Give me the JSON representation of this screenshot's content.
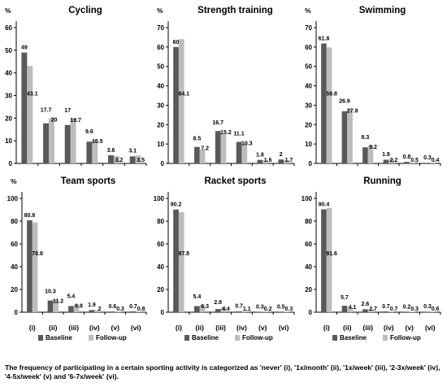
{
  "colors": {
    "baseline": "#595959",
    "followup": "#bdbdbd",
    "axis": "#000000"
  },
  "legend": {
    "baseline": "Baseline",
    "followup": "Follow-up"
  },
  "caption": "The frequency of participating in a certain sporting activity is categorized as 'never' (i), '1x/month' (ii), '1x/week' (iii), '2-3x/week' (iv), '4-5x/week' (v) and '6-7x/week' (vi).",
  "chart_data": [
    {
      "type": "bar",
      "title": "Cycling",
      "ylabel": "%",
      "ylim": [
        0,
        60
      ],
      "yticks": [
        0,
        10,
        20,
        30,
        40,
        50,
        60
      ],
      "categories": [
        "",
        "",
        "",
        "",
        "",
        ""
      ],
      "series": [
        {
          "name": "",
          "values": [
            49,
            17.7,
            17,
            9.6,
            3.6,
            3.1
          ],
          "labels": [
            "49",
            "17.7",
            "17",
            "9.6",
            "3.6",
            "3.1"
          ]
        },
        {
          "name": "",
          "values": [
            43.1,
            20,
            19.7,
            10.5,
            3.2,
            3.5
          ],
          "labels": [
            "43.1",
            "20",
            "19.7",
            "10.5",
            "3.2",
            "3.5"
          ]
        }
      ]
    },
    {
      "type": "bar",
      "title": "Strength training",
      "ylabel": "%",
      "ylim": [
        0,
        70
      ],
      "yticks": [
        0,
        10,
        20,
        30,
        40,
        50,
        60,
        70
      ],
      "categories": [
        "",
        "",
        "",
        "",
        "",
        ""
      ],
      "series": [
        {
          "name": "",
          "values": [
            60,
            8.5,
            16.7,
            11.1,
            1.8,
            2
          ],
          "labels": [
            "60",
            "8.5",
            "16.7",
            "11.1",
            "1.8",
            "2"
          ]
        },
        {
          "name": "",
          "values": [
            64.1,
            7.2,
            15.2,
            10.3,
            1.6,
            1.7
          ],
          "labels": [
            "64.1",
            "7.2",
            "15.2",
            "10.3",
            "1.6",
            "1.7"
          ]
        }
      ]
    },
    {
      "type": "bar",
      "title": "Swimming",
      "ylabel": "%",
      "ylim": [
        0,
        70
      ],
      "yticks": [
        0,
        10,
        20,
        30,
        40,
        50,
        60,
        70
      ],
      "categories": [
        "",
        "",
        "",
        "",
        "",
        ""
      ],
      "series": [
        {
          "name": "",
          "values": [
            61.8,
            26.9,
            8.3,
            1.9,
            0.8,
            0.3
          ],
          "labels": [
            "61.8",
            "26.9",
            "8.3",
            "1.9",
            "0.8",
            "0.3"
          ]
        },
        {
          "name": "",
          "values": [
            59.8,
            27.9,
            9.2,
            2.2,
            0.5,
            0.4
          ],
          "labels": [
            "59.8",
            "27.9",
            "9.2",
            "2.2",
            "0.5",
            "0.4"
          ]
        }
      ]
    },
    {
      "type": "bar",
      "title": "Team sports",
      "ylabel": "%",
      "ylim": [
        0,
        100
      ],
      "yticks": [
        0,
        20,
        40,
        60,
        80,
        100
      ],
      "categories": [
        "(i)",
        "(ii)",
        "(iii)",
        "(iv)",
        "(v)",
        "(vi)"
      ],
      "series": [
        {
          "name": "Baseline",
          "values": [
            80.8,
            10.3,
            5.4,
            1.9,
            0.6,
            0.7
          ],
          "labels": [
            "80.8",
            "10.3",
            "5.4",
            "1.9",
            "0.6",
            "0.7"
          ]
        },
        {
          "name": "Follow-up",
          "values": [
            78.8,
            11.2,
            6.8,
            2,
            0.3,
            0.8
          ],
          "labels": [
            "78.8",
            "11.2",
            "6.8",
            "2",
            "0.3",
            "0.8"
          ]
        }
      ]
    },
    {
      "type": "bar",
      "title": "Racket sports",
      "ylabel": "",
      "ylim": [
        0,
        100
      ],
      "yticks": [
        0,
        20,
        40,
        60,
        80,
        100
      ],
      "categories": [
        "(i)",
        "(ii)",
        "(iii)",
        "(iv)",
        "(v)",
        "(vi)"
      ],
      "series": [
        {
          "name": "Baseline",
          "values": [
            90.2,
            5.4,
            2.8,
            0.7,
            0.3,
            0.5
          ],
          "labels": [
            "90.2",
            "5.4",
            "2.8",
            "0.7",
            "0.3",
            "0.5"
          ]
        },
        {
          "name": "Follow-up",
          "values": [
            87.8,
            6.3,
            4.4,
            1.1,
            0.2,
            0.3
          ],
          "labels": [
            "87.8",
            "6.3",
            "4.4",
            "1.1",
            "0.2",
            "0.3"
          ]
        }
      ]
    },
    {
      "type": "bar",
      "title": "Running",
      "ylabel": "",
      "ylim": [
        0,
        100
      ],
      "yticks": [
        0,
        20,
        40,
        60,
        80,
        100
      ],
      "categories": [
        "(i)",
        "(ii)",
        "(iii)",
        "(iv)",
        "(v)",
        "(vi)"
      ],
      "series": [
        {
          "name": "Baseline",
          "values": [
            90.4,
            5.7,
            2.6,
            0.7,
            0.2,
            0.3
          ],
          "labels": [
            "90.4",
            "5.7",
            "2.6",
            "0.7",
            "0.2",
            "0.3"
          ]
        },
        {
          "name": "Follow-up",
          "values": [
            91.6,
            4.1,
            2.7,
            0.7,
            0.3,
            0.6
          ],
          "labels": [
            "91.6",
            "4.1",
            "2.7",
            "0.7",
            "0.3",
            "0.6"
          ]
        }
      ]
    }
  ]
}
